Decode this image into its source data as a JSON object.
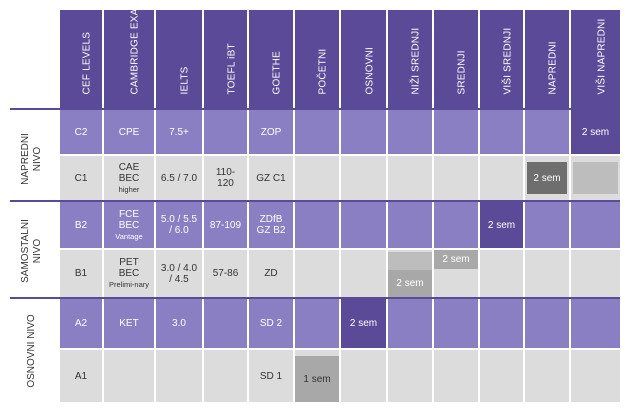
{
  "table": {
    "headers": [
      "CEF LEVELS",
      "CAMBRIDGE EXAM",
      "IELTS",
      "TOEFL iBT",
      "GOETHE",
      "POČETNI",
      "OSNOVNI",
      "NIŽI SREDNJI",
      "SREDNJI",
      "VIŠI SREDNJI",
      "NAPREDNI",
      "VIŠI NAPREDNI"
    ],
    "sections": [
      {
        "label": "NAPREDNI\nNIVO"
      },
      {
        "label": "SAMOSTALNI\nNIVO"
      },
      {
        "label": "OSNOVNI NIVO"
      }
    ],
    "rows": [
      {
        "cef": "C2",
        "cambridge": "CPE",
        "ielts": "7.5+",
        "toefl": "",
        "goethe": "ZOP",
        "semester": "2 sem"
      },
      {
        "cef": "C1",
        "cambridge": [
          "CAE",
          "BEC"
        ],
        "cambridge_note": "higher",
        "ielts": "6.5 / 7.0",
        "toefl": [
          "110-",
          "120"
        ],
        "goethe": "GZ C1",
        "semester": "2 sem"
      },
      {
        "cef": "B2",
        "cambridge": [
          "FCE",
          "BEC"
        ],
        "cambridge_note": "Vantage",
        "ielts": [
          "5.0 / 5.5",
          "/ 6.0"
        ],
        "toefl": "87-109",
        "goethe": [
          "ZDfB",
          "GZ B2"
        ],
        "semester": "2 sem"
      },
      {
        "cef": "B1",
        "cambridge": [
          "PET",
          "BEC"
        ],
        "cambridge_note": "Prelimi-nary",
        "ielts": [
          "3.0 / 4.0",
          "/ 4.5"
        ],
        "toefl": "57-86",
        "goethe": "ZD",
        "semester_a": "2 sem",
        "semester_b": "2 sem"
      },
      {
        "cef": "A2",
        "cambridge": "KET",
        "ielts": "3.0",
        "toefl": "",
        "goethe": "SD 2",
        "semester": "2 sem"
      },
      {
        "cef": "A1",
        "cambridge": "",
        "ielts": "",
        "toefl": "",
        "goethe": "SD 1",
        "semester": "1 sem"
      }
    ]
  },
  "colors": {
    "header": "#5b4a98",
    "purple_row": "#8a7fc2",
    "grey_row": "#dcdcdc",
    "badge_dark": "#6e6e6e",
    "badge_light": "#bdbdbd"
  }
}
